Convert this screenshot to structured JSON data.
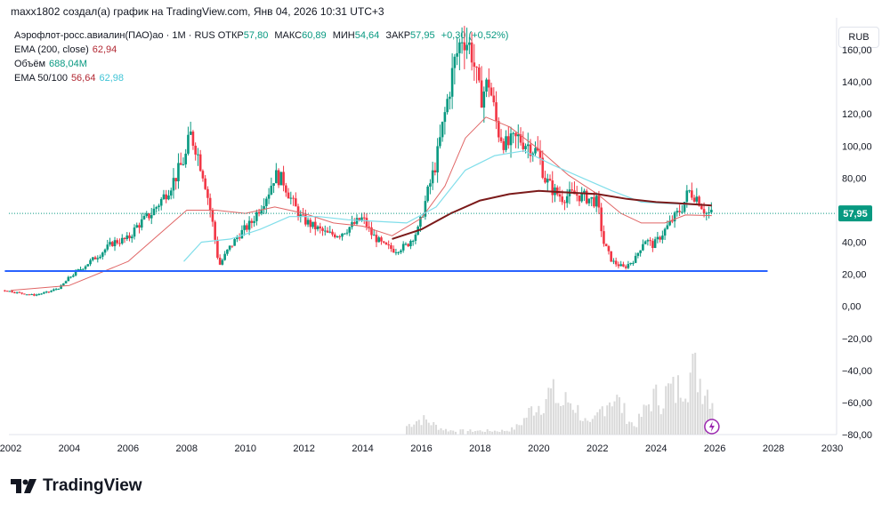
{
  "header": "maxx1802 создал(а) график на TradingView.com, Янв 04, 2026 10:31 UTC+3",
  "legend": {
    "symbol": "Аэрофлот-росс.авиалин(ПАО)ао · 1M · RUS",
    "open_label": "ОТКР",
    "open": "57,80",
    "high_label": "МАКС",
    "high": "60,89",
    "low_label": "МИН",
    "low": "54,64",
    "close_label": "ЗАКР",
    "close": "57,95",
    "change": "+0,30 (+0,52%)",
    "ema200_label": "EMA (200, close)",
    "ema200_value": "62,94",
    "volume_label": "Объём",
    "volume_value": "688,04M",
    "ema50_100_label": "EMA 50/100",
    "ema50_value": "56,64",
    "ema100_value": "62,98"
  },
  "currency_button": "RUB",
  "brand": "TradingView",
  "colors": {
    "up": "#089981",
    "down": "#f23645",
    "support": "#2962ff",
    "ema50": "#e06666",
    "ema100": "#80deea",
    "ema200": "#7b1a1a",
    "volume": "#d9d9d9",
    "price_label": "#089981"
  },
  "chart_data": {
    "type": "candlestick",
    "title": "Аэрофлот-росс.авиалин(ПАО)ао · 1M",
    "currency": "RUB",
    "y_axis": {
      "min": -80,
      "max": 180,
      "ticks": [
        -80,
        -60,
        -40,
        -20,
        0,
        20,
        40,
        60,
        80,
        100,
        120,
        140,
        160
      ],
      "tick_labels": [
        "−80,00",
        "−60,00",
        "−40,00",
        "−20,00",
        "0,00",
        "20,00",
        "40,00",
        "60,00",
        "80,00",
        "100,00",
        "120,00",
        "140,00",
        "160,00"
      ]
    },
    "x_axis": {
      "min": 2002,
      "max": 2030,
      "ticks": [
        2002,
        2004,
        2006,
        2008,
        2010,
        2012,
        2014,
        2016,
        2018,
        2020,
        2022,
        2024,
        2026,
        2028,
        2030
      ],
      "tick_labels": [
        "2002",
        "2004",
        "2006",
        "2008",
        "2010",
        "2012",
        "2014",
        "2016",
        "2018",
        "2020",
        "2022",
        "2024",
        "2026",
        "2028",
        "2030"
      ]
    },
    "last_price": 57.95,
    "last_price_label": "57,95",
    "support_level": 22,
    "price_path": [
      [
        2001.8,
        10
      ],
      [
        2002.4,
        8
      ],
      [
        2002.8,
        7
      ],
      [
        2003.3,
        9
      ],
      [
        2003.7,
        12
      ],
      [
        2004.0,
        18
      ],
      [
        2004.5,
        25
      ],
      [
        2005.0,
        32
      ],
      [
        2005.5,
        40
      ],
      [
        2006.0,
        42
      ],
      [
        2006.3,
        50
      ],
      [
        2006.8,
        58
      ],
      [
        2007.2,
        68
      ],
      [
        2007.6,
        80
      ],
      [
        2008.0,
        95
      ],
      [
        2008.1,
        108
      ],
      [
        2008.3,
        100
      ],
      [
        2008.6,
        80
      ],
      [
        2008.9,
        50
      ],
      [
        2009.1,
        25
      ],
      [
        2009.4,
        35
      ],
      [
        2009.8,
        45
      ],
      [
        2010.2,
        52
      ],
      [
        2010.5,
        62
      ],
      [
        2010.8,
        72
      ],
      [
        2011.0,
        82
      ],
      [
        2011.3,
        78
      ],
      [
        2011.6,
        65
      ],
      [
        2011.9,
        55
      ],
      [
        2012.3,
        50
      ],
      [
        2012.8,
        45
      ],
      [
        2013.2,
        45
      ],
      [
        2013.6,
        50
      ],
      [
        2014.0,
        55
      ],
      [
        2014.3,
        45
      ],
      [
        2014.7,
        38
      ],
      [
        2015.1,
        35
      ],
      [
        2015.5,
        38
      ],
      [
        2015.9,
        48
      ],
      [
        2016.2,
        70
      ],
      [
        2016.5,
        90
      ],
      [
        2016.8,
        120
      ],
      [
        2017.1,
        150
      ],
      [
        2017.4,
        170
      ],
      [
        2017.7,
        160
      ],
      [
        2018.0,
        130
      ],
      [
        2018.3,
        140
      ],
      [
        2018.6,
        110
      ],
      [
        2018.9,
        100
      ],
      [
        2019.3,
        105
      ],
      [
        2019.7,
        100
      ],
      [
        2020.0,
        95
      ],
      [
        2020.2,
        80
      ],
      [
        2020.5,
        72
      ],
      [
        2020.8,
        68
      ],
      [
        2021.2,
        70
      ],
      [
        2021.6,
        68
      ],
      [
        2022.0,
        65
      ],
      [
        2022.2,
        40
      ],
      [
        2022.5,
        28
      ],
      [
        2022.9,
        24
      ],
      [
        2023.3,
        30
      ],
      [
        2023.6,
        42
      ],
      [
        2023.9,
        38
      ],
      [
        2024.2,
        45
      ],
      [
        2024.6,
        55
      ],
      [
        2024.9,
        62
      ],
      [
        2025.1,
        72
      ],
      [
        2025.4,
        68
      ],
      [
        2025.7,
        58
      ],
      [
        2025.9,
        57.95
      ]
    ],
    "ema50_path": [
      [
        2002.0,
        10
      ],
      [
        2004.0,
        13
      ],
      [
        2006.0,
        28
      ],
      [
        2008.0,
        60
      ],
      [
        2009.0,
        60
      ],
      [
        2010.0,
        58
      ],
      [
        2011.0,
        62
      ],
      [
        2012.0,
        58
      ],
      [
        2013.0,
        52
      ],
      [
        2014.0,
        50
      ],
      [
        2015.0,
        44
      ],
      [
        2016.0,
        55
      ],
      [
        2016.8,
        75
      ],
      [
        2017.5,
        105
      ],
      [
        2018.2,
        118
      ],
      [
        2019.0,
        112
      ],
      [
        2020.0,
        98
      ],
      [
        2021.0,
        82
      ],
      [
        2022.0,
        70
      ],
      [
        2022.8,
        58
      ],
      [
        2023.5,
        52
      ],
      [
        2024.3,
        52
      ],
      [
        2025.0,
        57
      ],
      [
        2025.9,
        56.6
      ]
    ],
    "ema100_path": [
      [
        2007.9,
        28
      ],
      [
        2008.5,
        40
      ],
      [
        2009.5,
        42
      ],
      [
        2010.5,
        48
      ],
      [
        2011.5,
        56
      ],
      [
        2012.5,
        56
      ],
      [
        2013.5,
        54
      ],
      [
        2014.5,
        53
      ],
      [
        2015.5,
        52
      ],
      [
        2016.5,
        62
      ],
      [
        2017.5,
        85
      ],
      [
        2018.5,
        94
      ],
      [
        2019.5,
        97
      ],
      [
        2020.5,
        88
      ],
      [
        2021.5,
        80
      ],
      [
        2022.5,
        72
      ],
      [
        2023.5,
        65
      ],
      [
        2024.5,
        64
      ],
      [
        2025.9,
        63
      ]
    ],
    "ema200_path": [
      [
        2015.0,
        42
      ],
      [
        2016.0,
        48
      ],
      [
        2017.0,
        58
      ],
      [
        2018.0,
        66
      ],
      [
        2019.0,
        70
      ],
      [
        2020.0,
        72
      ],
      [
        2021.0,
        71
      ],
      [
        2022.0,
        70
      ],
      [
        2023.0,
        67
      ],
      [
        2024.0,
        65
      ],
      [
        2025.0,
        64
      ],
      [
        2025.9,
        62.9
      ]
    ],
    "volume_peaks": [
      [
        2016.0,
        0.15
      ],
      [
        2020.0,
        0.35
      ],
      [
        2020.4,
        0.5
      ],
      [
        2021.0,
        0.4
      ],
      [
        2022.5,
        0.45
      ],
      [
        2024.0,
        0.45
      ],
      [
        2024.5,
        0.55
      ],
      [
        2025.0,
        0.7
      ],
      [
        2025.3,
        0.8
      ],
      [
        2025.6,
        0.6
      ]
    ]
  }
}
